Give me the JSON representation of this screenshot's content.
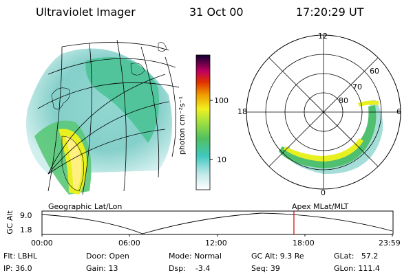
{
  "header": {
    "instrument": "Ultraviolet Imager",
    "date": "31 Oct 00",
    "time": "17:20:29 UT"
  },
  "colorbar": {
    "unit_label": "photon cm⁻²s⁻¹",
    "ticks": [
      "100",
      "10"
    ]
  },
  "polar_plot": {
    "mlt_labels": [
      "12",
      "18",
      "6",
      "0"
    ],
    "lat_labels": [
      "60",
      "70",
      "80"
    ]
  },
  "timeline": {
    "left_title": "Geographic Lat/Lon",
    "right_title": "Apex MLat/MLT",
    "axis_label": "GC Alt",
    "y_ticks": [
      "9.0",
      "1.8"
    ],
    "x_ticks": [
      "00:00",
      "06:00",
      "12:00",
      "18:00",
      "23:59"
    ],
    "marker_color": "#d00000"
  },
  "info": {
    "flt": "Flt: LBHL",
    "ip": "IP: 36.0",
    "door": "Door: Open",
    "gain": "Gain: 13",
    "mode": "Mode: Normal",
    "dsp": "Dsp:    -3.4",
    "gc_alt": "GC Alt: 9.3 Re",
    "seq": "Seq: 39",
    "glat": "GLat:   57.2",
    "glon": "GLon: 111.4"
  }
}
